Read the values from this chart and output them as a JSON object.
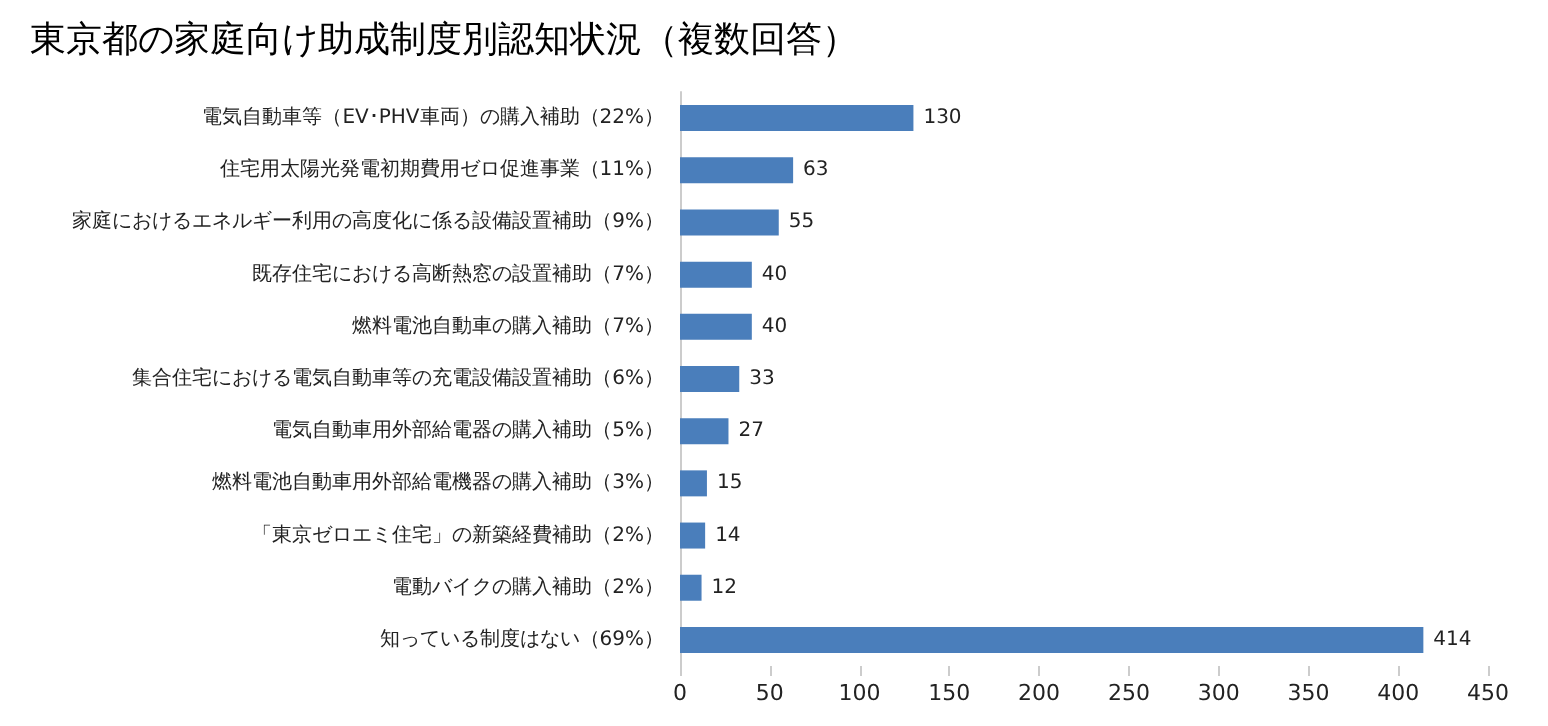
{
  "chart_data": {
    "type": "bar",
    "orientation": "horizontal",
    "title": "東京都の家庭向け助成制度別認知状況（複数回答）",
    "categories": [
      "電気自動車等（EV･PHV車両）の購入補助（22%）",
      "住宅用太陽光発電初期費用ゼロ促進事業（11%）",
      "家庭におけるエネルギー利用の高度化に係る設備設置補助（9%）",
      "既存住宅における高断熱窓の設置補助（7%）",
      "燃料電池自動車の購入補助（7%）",
      "集合住宅における電気自動車等の充電設備設置補助（6%）",
      "電気自動車用外部給電器の購入補助（5%）",
      "燃料電池自動車用外部給電機器の購入補助（3%）",
      "「東京ゼロエミ住宅」の新築経費補助（2%）",
      "電動バイクの購入補助（2%）",
      "知っている制度はない（69%）"
    ],
    "values": [
      130,
      63,
      55,
      40,
      40,
      33,
      27,
      15,
      14,
      12,
      414
    ],
    "color": "#4a7ebb",
    "xlim": [
      0,
      450
    ],
    "xticks": [
      0,
      50,
      100,
      150,
      200,
      250,
      300,
      350,
      400,
      450
    ],
    "grid": false,
    "data_labels": true
  }
}
